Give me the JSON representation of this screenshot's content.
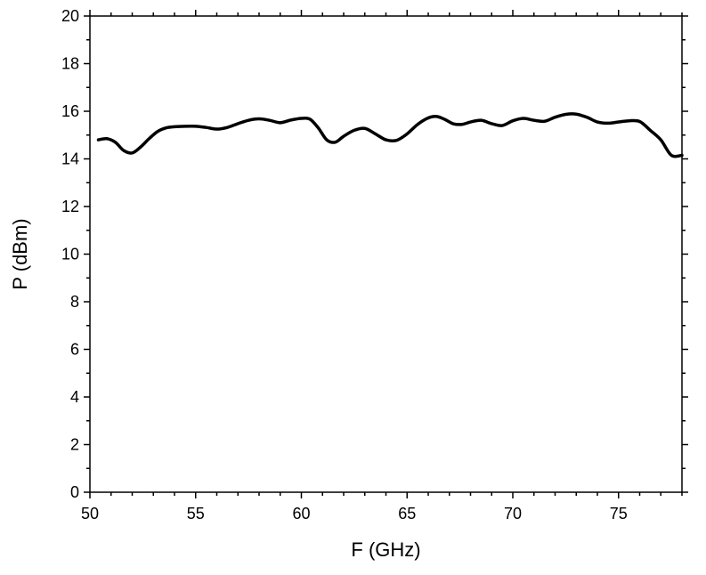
{
  "chart_data": {
    "type": "line",
    "xlabel": "F (GHz)",
    "ylabel": "P (dBm)",
    "xlim": [
      50,
      78
    ],
    "ylim": [
      0,
      20
    ],
    "x_ticks": [
      50,
      55,
      60,
      65,
      70,
      75
    ],
    "x_tick_labels": [
      "50",
      "55",
      "60",
      "65",
      "70",
      "75"
    ],
    "y_ticks": [
      0,
      2,
      4,
      6,
      8,
      10,
      12,
      14,
      16,
      18,
      20
    ],
    "y_tick_labels": [
      "0",
      "2",
      "4",
      "6",
      "8",
      "10",
      "12",
      "14",
      "16",
      "18",
      "20"
    ],
    "x_minor_step": 1,
    "y_minor_step": 1,
    "grid": false,
    "series": [
      {
        "color": "#000000",
        "x": [
          50.4,
          50.8,
          51.2,
          51.6,
          52.0,
          52.4,
          52.8,
          53.2,
          53.6,
          54.0,
          54.5,
          55.0,
          55.5,
          56.0,
          56.5,
          57.0,
          57.5,
          58.0,
          58.5,
          59.0,
          59.5,
          60.0,
          60.4,
          60.8,
          61.2,
          61.6,
          62.0,
          62.5,
          63.0,
          63.5,
          64.0,
          64.5,
          65.0,
          65.5,
          66.0,
          66.4,
          66.8,
          67.2,
          67.6,
          68.0,
          68.5,
          69.0,
          69.5,
          70.0,
          70.5,
          71.0,
          71.5,
          72.0,
          72.5,
          73.0,
          73.5,
          74.0,
          74.5,
          75.0,
          75.5,
          76.0,
          76.5,
          77.0,
          77.5,
          78.0
        ],
        "y": [
          14.8,
          14.85,
          14.7,
          14.35,
          14.25,
          14.5,
          14.85,
          15.15,
          15.3,
          15.35,
          15.37,
          15.37,
          15.32,
          15.25,
          15.32,
          15.48,
          15.62,
          15.68,
          15.62,
          15.52,
          15.63,
          15.7,
          15.67,
          15.3,
          14.8,
          14.7,
          14.95,
          15.2,
          15.28,
          15.05,
          14.8,
          14.78,
          15.05,
          15.45,
          15.72,
          15.78,
          15.65,
          15.47,
          15.45,
          15.55,
          15.62,
          15.48,
          15.4,
          15.6,
          15.7,
          15.62,
          15.58,
          15.75,
          15.87,
          15.88,
          15.75,
          15.55,
          15.5,
          15.55,
          15.6,
          15.57,
          15.2,
          14.8,
          14.15,
          14.15
        ]
      }
    ]
  }
}
